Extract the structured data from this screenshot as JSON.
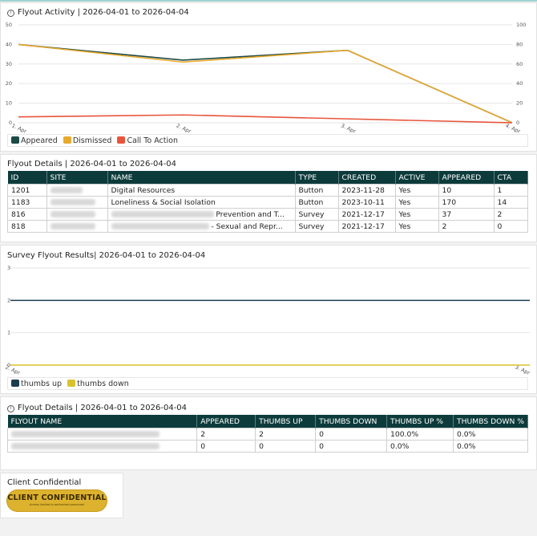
{
  "activity": {
    "title": "Flyout Activity | 2026-04-01 to 2026-04-04",
    "legend": [
      {
        "label": "Appeared",
        "color": "#1c4a46"
      },
      {
        "label": "Dismissed",
        "color": "#e9a92f"
      },
      {
        "label": "Call  To  Action",
        "color": "#e8553b"
      }
    ]
  },
  "details": {
    "title": "Flyout Details | 2026-04-01 to 2026-04-04",
    "columns": [
      "ID",
      "SITE",
      "NAME",
      "TYPE",
      "CREATED",
      "ACTIVE",
      "APPEARED",
      "CTA"
    ],
    "rows": [
      {
        "id": "1201",
        "name": "Digital Resources",
        "type": "Button",
        "created": "2023-11-28",
        "active": "Yes",
        "appeared": "10",
        "cta": "1"
      },
      {
        "id": "1183",
        "name": "Loneliness & Social Isolation",
        "type": "Button",
        "created": "2023-10-11",
        "active": "Yes",
        "appeared": "170",
        "cta": "14"
      },
      {
        "id": "816",
        "name": "Prevention and T...",
        "type": "Survey",
        "created": "2021-12-17",
        "active": "Yes",
        "appeared": "37",
        "cta": "2"
      },
      {
        "id": "818",
        "name": "- Sexual and Repr...",
        "type": "Survey",
        "created": "2021-12-17",
        "active": "Yes",
        "appeared": "2",
        "cta": "0"
      }
    ]
  },
  "survey": {
    "title": "Survey Flyout Results| 2026-04-01 to 2026-04-04",
    "legend": [
      {
        "label": "thumbs  up",
        "color": "#1c3d4f"
      },
      {
        "label": "thumbs  down",
        "color": "#d9c22e"
      }
    ]
  },
  "details2": {
    "title": "Flyout Details | 2026-04-01 to 2026-04-04",
    "columns": [
      "FLYOUT NAME",
      "APPEARED",
      "THUMBS UP",
      "THUMBS DOWN",
      "THUMBS UP %",
      "THUMBS DOWN %"
    ],
    "rows": [
      {
        "appeared": "2",
        "up": "2",
        "down": "0",
        "up_pct": "100.0%",
        "down_pct": "0.0%"
      },
      {
        "appeared": "0",
        "up": "0",
        "down": "0",
        "up_pct": "0.0%",
        "down_pct": "0.0%"
      }
    ]
  },
  "footer": {
    "label": "Client Confidential",
    "badge_title": "CLIENT CONFIDENTIAL",
    "badge_sub": "Access limited to authorized personnel"
  },
  "chart_data": [
    {
      "type": "line",
      "x": [
        "1. Apr",
        "2. Apr",
        "3. Apr",
        "4. Apr"
      ],
      "series": [
        {
          "name": "Appeared",
          "values": [
            40,
            32,
            37,
            0
          ],
          "axis": "left"
        },
        {
          "name": "Dismissed",
          "values": [
            40,
            31,
            37,
            0
          ],
          "axis": "left"
        },
        {
          "name": "Call  To  Action",
          "values": [
            3,
            4,
            2,
            0
          ],
          "axis": "left"
        }
      ],
      "yticks_left": [
        "0",
        "10",
        "20",
        "30",
        "40",
        "50"
      ],
      "yticks_right": [
        "0",
        "20",
        "40",
        "60",
        "80",
        "100"
      ],
      "ylim": [
        0,
        50
      ],
      "ylim_right": [
        0,
        100
      ],
      "grid": true,
      "legend": "bottom-left"
    },
    {
      "type": "line",
      "x": [
        "2. Apr",
        "3. Apr"
      ],
      "series": [
        {
          "name": "thumbs  up",
          "values": [
            2,
            2
          ]
        },
        {
          "name": "thumbs  down",
          "values": [
            0,
            0
          ]
        }
      ],
      "yticks": [
        "0",
        "1",
        "2",
        "3"
      ],
      "ylim": [
        0,
        3
      ],
      "grid": true,
      "legend": "bottom-left"
    }
  ]
}
